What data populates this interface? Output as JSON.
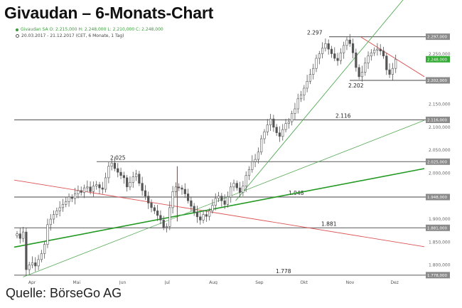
{
  "title": "Givaudan – 6-Monats-Chart",
  "legend": {
    "ohlc": "Givaudan SA  O: 2.215,000  H: 2.248,000  L: 2.210,000  C: 2.248,000",
    "range": "20.03.2017 - 21.12.2017   (CET, 6 Monate, 1 Tag)"
  },
  "source": "Quelle: BörseGo AG",
  "colors": {
    "candle": "#555555",
    "red_candle": "#cc2222",
    "hline": "#6b6b6b",
    "trend_red": "#dd5555",
    "trend_green": "#229922",
    "trend_green_light": "#55aa55",
    "label_bg": "#8a8a8a",
    "current_bg": "#33aa33"
  },
  "chart_data": {
    "type": "candlestick",
    "ylim": [
      1770,
      2315
    ],
    "y_ticks": [
      "2.150,000",
      "2.100,000",
      "2.050,000",
      "2.000,000",
      "1.900,000",
      "1.850,000",
      "1.800,000"
    ],
    "y_tick_values": [
      2150,
      2100,
      2050,
      2000,
      1900,
      1850,
      1800
    ],
    "extra_ticks": [
      "2.250,000"
    ],
    "extra_tick_values": [
      2250
    ],
    "x_labels": [
      "Apr",
      "Mai",
      "Jun",
      "Jul",
      "Aug",
      "Sep",
      "Okt",
      "Nov",
      "Dez"
    ],
    "x_label_days": [
      12,
      42,
      73,
      103,
      134,
      165,
      195,
      226,
      256
    ],
    "levels": [
      {
        "value": 2297,
        "text": "2.297",
        "axis_label": "2.297,000"
      },
      {
        "value": 2202,
        "text": "2.202",
        "axis_label": "2.202,000"
      },
      {
        "value": 2116,
        "text": "2.116",
        "axis_label": "2.116,000"
      },
      {
        "value": 2025,
        "text": "2.025",
        "axis_label": "2.025,000"
      },
      {
        "value": 1948,
        "text": "1.948",
        "axis_label": "1.948,000"
      },
      {
        "value": 1881,
        "text": "1.881",
        "axis_label": "1.881,000"
      },
      {
        "value": 1778,
        "text": "1.778",
        "axis_label": "1.778,000"
      }
    ],
    "current": {
      "value": 2248,
      "axis_label": "2.248,000"
    },
    "trendlines": [
      {
        "color": "red",
        "from": [
          0,
          1985
        ],
        "to": [
          276,
          1840
        ]
      },
      {
        "color": "red",
        "from": [
          233,
          2297
        ],
        "to": [
          276,
          2210
        ]
      },
      {
        "color": "green_dark",
        "from": [
          0,
          1839
        ],
        "to": [
          276,
          2010
        ]
      },
      {
        "color": "green_light",
        "from": [
          6,
          1774
        ],
        "to": [
          276,
          2115
        ]
      },
      {
        "color": "green",
        "from": [
          149,
          1940
        ],
        "to": [
          265,
          2390
        ]
      }
    ],
    "closes": [
      1868,
      1858,
      1872,
      1790,
      1800,
      1805,
      1798,
      1812,
      1825,
      1845,
      1888,
      1900,
      1910,
      1918,
      1925,
      1932,
      1938,
      1948,
      1945,
      1955,
      1962,
      1958,
      1968,
      1970,
      1960,
      1972,
      1975,
      1968,
      1965,
      1990,
      2015,
      2022,
      2010,
      2002,
      1995,
      1990,
      1970,
      1980,
      1992,
      1998,
      1978,
      1962,
      1950,
      1935,
      1925,
      1918,
      1908,
      1898,
      1882,
      1884,
      1925,
      1960,
      1970,
      1968,
      1965,
      1955,
      1940,
      1928,
      1915,
      1905,
      1898,
      1910,
      1906,
      1918,
      1930,
      1945,
      1950,
      1940,
      1932,
      1948,
      1970,
      1978,
      1968,
      1958,
      1972,
      1995,
      2008,
      2025,
      2030,
      2046,
      2075,
      2090,
      2105,
      2118,
      2100,
      2088,
      2080,
      2095,
      2108,
      2112,
      2130,
      2140,
      2162,
      2170,
      2185,
      2200,
      2215,
      2228,
      2250,
      2260,
      2272,
      2282,
      2270,
      2260,
      2250,
      2245,
      2262,
      2278,
      2290,
      2282,
      2262,
      2230,
      2210,
      2220,
      2240,
      2255,
      2262,
      2268,
      2270,
      2266,
      2255,
      2225,
      2215,
      2228,
      2248
    ]
  }
}
